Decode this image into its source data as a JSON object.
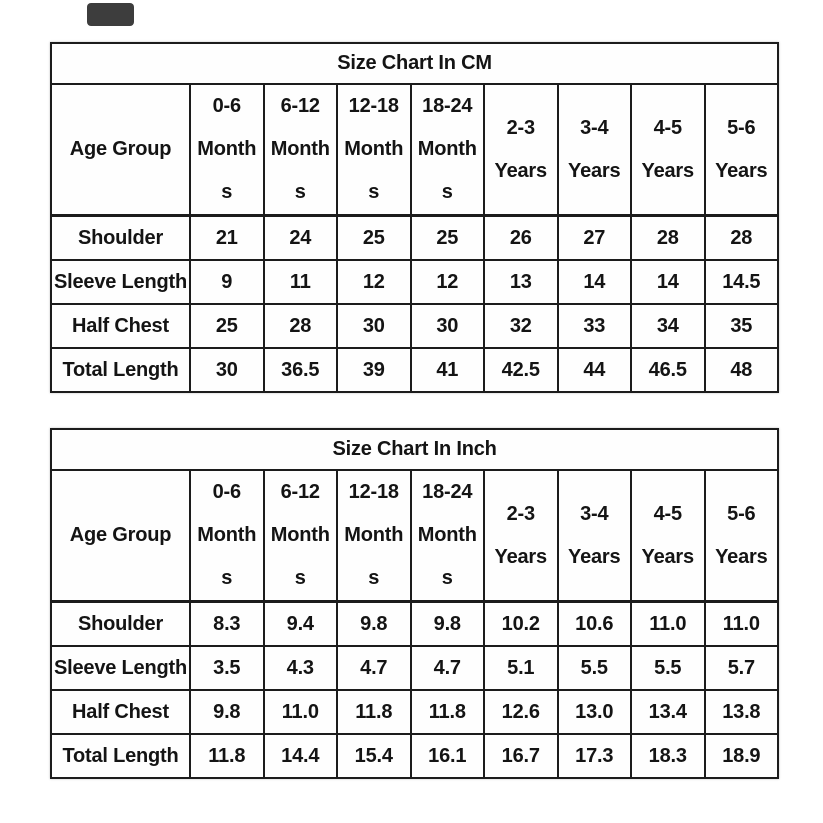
{
  "page": {
    "background": "#ffffff"
  },
  "corner_badge": {
    "color": "#3d3d3d"
  },
  "chart_data": [
    {
      "type": "table",
      "title": "Size Chart In CM",
      "corner_label": "Age Group",
      "columns": [
        {
          "label": "0-6 Months",
          "lines": [
            "0-6",
            "Month",
            "s"
          ]
        },
        {
          "label": "6-12 Months",
          "lines": [
            "6-12",
            "Month",
            "s"
          ]
        },
        {
          "label": "12-18 Months",
          "lines": [
            "12-18",
            "Month",
            "s"
          ]
        },
        {
          "label": "18-24 Months",
          "lines": [
            "18-24",
            "Month",
            "s"
          ]
        },
        {
          "label": "2-3 Years",
          "lines": [
            "2-3",
            "Years"
          ]
        },
        {
          "label": "3-4 Years",
          "lines": [
            "3-4",
            "Years"
          ]
        },
        {
          "label": "4-5 Years",
          "lines": [
            "4-5",
            "Years"
          ]
        },
        {
          "label": "5-6 Years",
          "lines": [
            "5-6",
            "Years"
          ]
        }
      ],
      "rows": [
        {
          "label": "Shoulder",
          "values": [
            "21",
            "24",
            "25",
            "25",
            "26",
            "27",
            "28",
            "28"
          ]
        },
        {
          "label": "Sleeve Length",
          "values": [
            "9",
            "11",
            "12",
            "12",
            "13",
            "14",
            "14",
            "14.5"
          ]
        },
        {
          "label": "Half Chest",
          "values": [
            "25",
            "28",
            "30",
            "30",
            "32",
            "33",
            "34",
            "35"
          ]
        },
        {
          "label": "Total Length",
          "values": [
            "30",
            "36.5",
            "39",
            "41",
            "42.5",
            "44",
            "46.5",
            "48"
          ]
        }
      ]
    },
    {
      "type": "table",
      "title": "Size Chart In Inch",
      "corner_label": "Age Group",
      "columns": [
        {
          "label": "0-6 Months",
          "lines": [
            "0-6",
            "Month",
            "s"
          ]
        },
        {
          "label": "6-12 Months",
          "lines": [
            "6-12",
            "Month",
            "s"
          ]
        },
        {
          "label": "12-18 Months",
          "lines": [
            "12-18",
            "Month",
            "s"
          ]
        },
        {
          "label": "18-24 Months",
          "lines": [
            "18-24",
            "Month",
            "s"
          ]
        },
        {
          "label": "2-3 Years",
          "lines": [
            "2-3",
            "Years"
          ]
        },
        {
          "label": "3-4 Years",
          "lines": [
            "3-4",
            "Years"
          ]
        },
        {
          "label": "4-5 Years",
          "lines": [
            "4-5",
            "Years"
          ]
        },
        {
          "label": "5-6 Years",
          "lines": [
            "5-6",
            "Years"
          ]
        }
      ],
      "rows": [
        {
          "label": "Shoulder",
          "values": [
            "8.3",
            "9.4",
            "9.8",
            "9.8",
            "10.2",
            "10.6",
            "11.0",
            "11.0"
          ]
        },
        {
          "label": "Sleeve Length",
          "values": [
            "3.5",
            "4.3",
            "4.7",
            "4.7",
            "5.1",
            "5.5",
            "5.5",
            "5.7"
          ]
        },
        {
          "label": "Half Chest",
          "values": [
            "9.8",
            "11.0",
            "11.8",
            "11.8",
            "12.6",
            "13.0",
            "13.4",
            "13.8"
          ]
        },
        {
          "label": "Total Length",
          "values": [
            "11.8",
            "14.4",
            "15.4",
            "16.1",
            "16.7",
            "17.3",
            "18.3",
            "18.9"
          ]
        }
      ]
    }
  ]
}
